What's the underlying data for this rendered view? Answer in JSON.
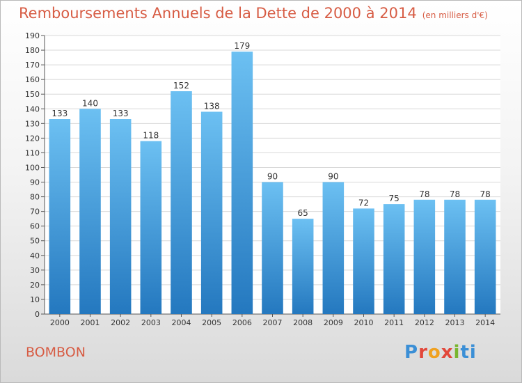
{
  "title": "Remboursements Annuels de la Dette de 2000 à 2014",
  "unit_note": "(en milliers d'€)",
  "commune": "BOMBON",
  "logo": {
    "letters": [
      "P",
      "r",
      "o",
      "x",
      "i",
      "t",
      "i"
    ],
    "colors": [
      "#3b8fd6",
      "#e2473a",
      "#f0a11f",
      "#e2473a",
      "#79b62f",
      "#3b8fd6",
      "#3b8fd6"
    ]
  },
  "colors": {
    "bar_light": "#6cc0f2",
    "bar_dark": "#2478bf",
    "grid": "#d8d8d8",
    "axis": "#555555",
    "accent": "#d75c44"
  },
  "chart_data": {
    "type": "bar",
    "title": "Remboursements Annuels de la Dette de 2000 à 2014",
    "xlabel": "",
    "ylabel": "",
    "categories": [
      "2000",
      "2001",
      "2002",
      "2003",
      "2004",
      "2005",
      "2006",
      "2007",
      "2008",
      "2009",
      "2010",
      "2011",
      "2012",
      "2013",
      "2014"
    ],
    "values": [
      133,
      140,
      133,
      118,
      152,
      138,
      179,
      90,
      65,
      90,
      72,
      75,
      78,
      78,
      78
    ],
    "ylim": [
      0,
      190
    ],
    "ytick_step": 10,
    "grid": true,
    "legend": "none"
  }
}
